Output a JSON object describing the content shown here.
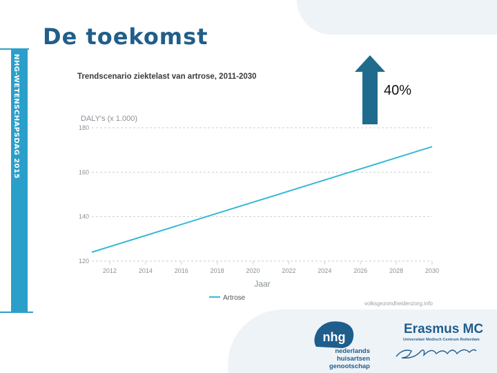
{
  "slide": {
    "title": "De toekomst",
    "sidebar_text": "NHG-WETENSCHAPSDAG 2015",
    "arrow_label": "40%",
    "colors": {
      "title": "#215e8a",
      "sidebar": "#2a9fc9",
      "arrow": "#1f6b8e"
    }
  },
  "chart_data": {
    "type": "line",
    "title": "Trendscenario ziektelast van artrose, 2011-2030",
    "ylabel": "DALY's (x 1.000)",
    "xlabel": "Jaar",
    "x": [
      2011,
      2030
    ],
    "series": [
      {
        "name": "Artrose",
        "color": "#35b8d6",
        "values": [
          124,
          171.5
        ]
      }
    ],
    "xticks": [
      2012,
      2014,
      2016,
      2018,
      2020,
      2022,
      2024,
      2026,
      2028,
      2030
    ],
    "yticks": [
      120,
      140,
      160,
      180
    ],
    "xlim": [
      2011,
      2030
    ],
    "ylim": [
      120,
      180
    ],
    "grid": true,
    "legend": "bottom-left",
    "source": "volksgezondheidenzorg.info"
  },
  "logos": {
    "nhg_mark": "nhg",
    "nhg_line1": "nederlands huisartsen",
    "nhg_line2": "genootschap",
    "erasmus_title": "Erasmus MC",
    "erasmus_sub": "Universitair Medisch Centrum Rotterdam",
    "erasmus_signature": "Erafmus"
  }
}
